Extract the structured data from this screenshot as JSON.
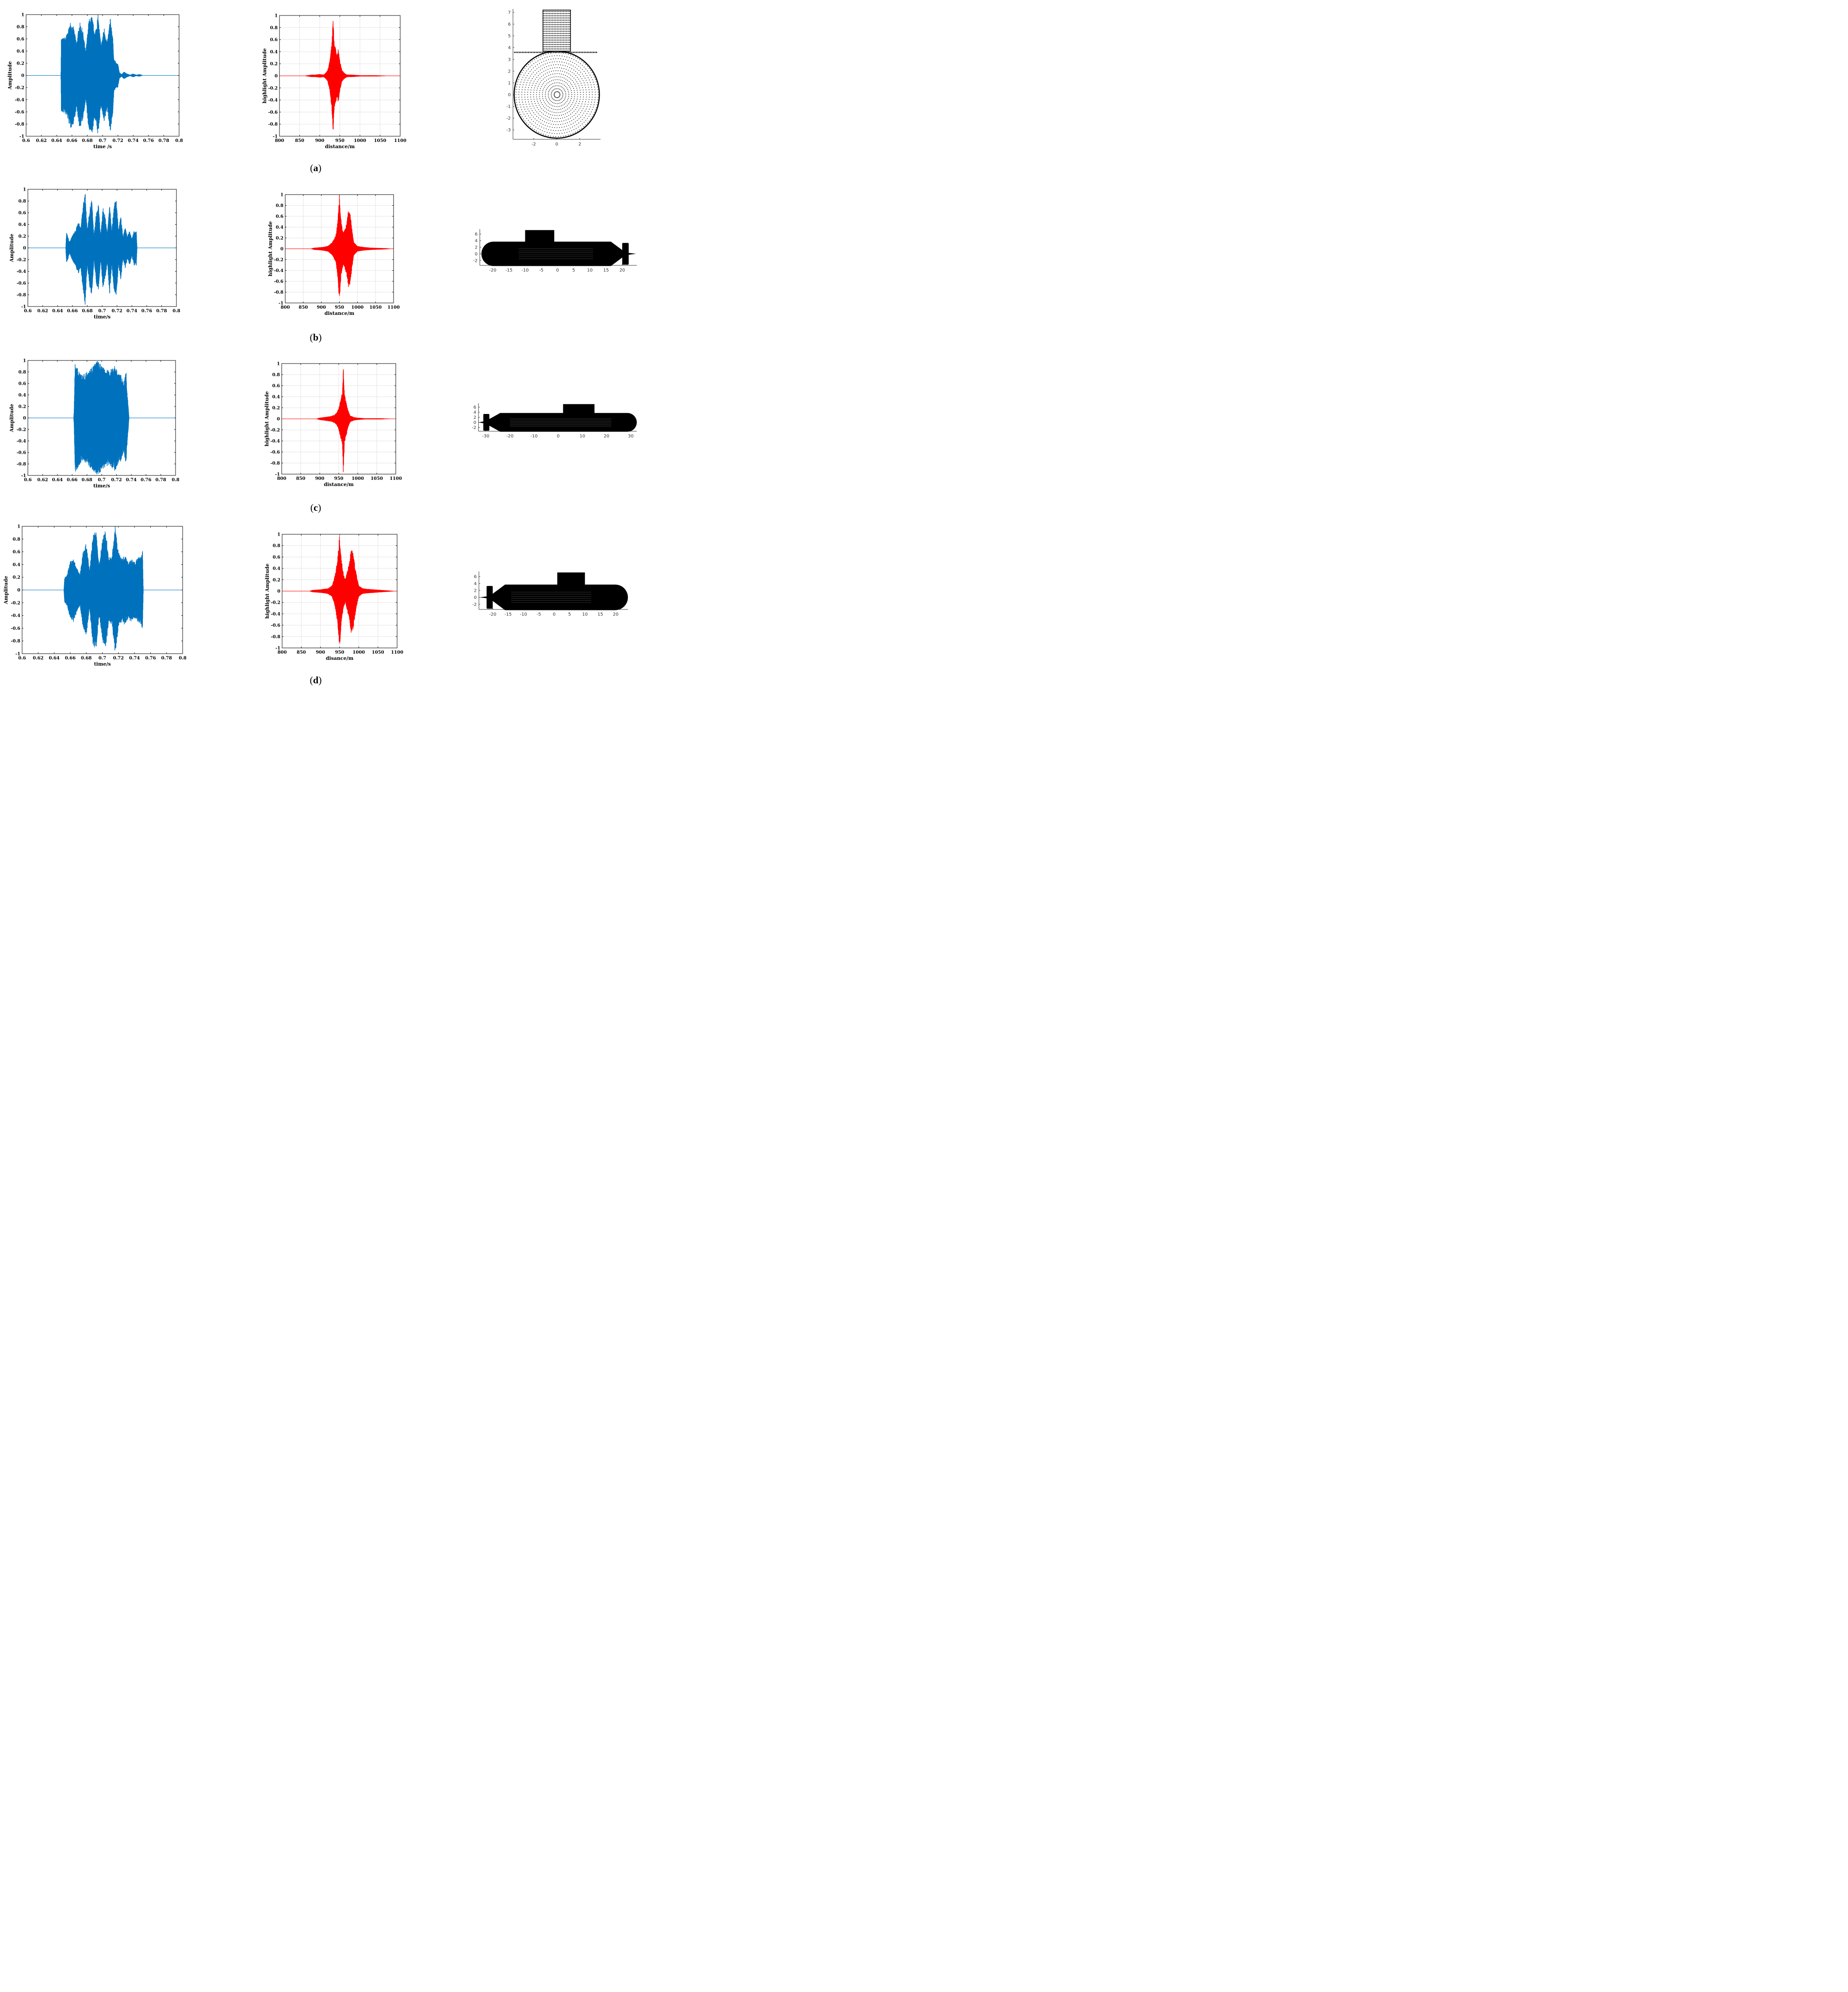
{
  "colors": {
    "waveform": "#0072BD",
    "highlight": "#FF0000",
    "model": "#000000"
  },
  "rows": [
    {
      "caption_letter": "a",
      "waveform": {
        "type": "area",
        "xlabel": "time /s",
        "ylabel": "Amplitude",
        "xlim": [
          0.6,
          0.8
        ],
        "ylim": [
          -1,
          1
        ],
        "xticks": [
          "0.6",
          "0.62",
          "0.64",
          "0.66",
          "0.68",
          "0.7",
          "0.72",
          "0.74",
          "0.76",
          "0.78",
          "0.8"
        ],
        "yticks": [
          "1",
          "0.8",
          "0.6",
          "0.4",
          "0.2",
          "0",
          "-0.2",
          "-0.4",
          "-0.6",
          "-0.8",
          "-1"
        ],
        "grid": false,
        "envelope": {
          "t": [
            0.6,
            0.6455,
            0.646,
            0.65,
            0.654,
            0.658,
            0.662,
            0.666,
            0.67,
            0.674,
            0.678,
            0.682,
            0.686,
            0.69,
            0.694,
            0.698,
            0.702,
            0.706,
            0.71,
            0.713,
            0.715,
            0.716,
            0.718,
            0.72,
            0.722,
            0.725,
            0.728,
            0.732,
            0.736,
            0.74,
            0.744,
            0.748,
            0.751,
            0.752,
            0.8
          ],
          "a": [
            0,
            0,
            0.62,
            0.62,
            0.7,
            0.88,
            0.8,
            0.55,
            0.88,
            0.75,
            0.4,
            0.92,
            0.98,
            0.7,
            1.0,
            0.5,
            0.8,
            0.55,
            0.95,
            0.7,
            0.25,
            0.25,
            0.2,
            0.2,
            0.05,
            0.02,
            0.06,
            0.03,
            0.01,
            0.03,
            0.01,
            0.02,
            0.01,
            0,
            0
          ]
        }
      },
      "highlight": {
        "type": "area",
        "xlabel": "distance/m",
        "ylabel": "highlight Amplitude",
        "xlim": [
          800,
          1100
        ],
        "ylim": [
          -1,
          1
        ],
        "xticks": [
          "800",
          "850",
          "900",
          "950",
          "1000",
          "1050",
          "1100"
        ],
        "yticks": [
          "1",
          "0.8",
          "0.6",
          "0.4",
          "0.2",
          "0",
          "-0.2",
          "-0.4",
          "-0.6",
          "-0.8",
          "-1"
        ],
        "grid": true,
        "envelope": {
          "x": [
            800,
            860,
            870,
            880,
            890,
            900,
            910,
            915,
            920,
            925,
            930,
            933,
            936,
            940,
            943,
            946,
            950,
            955,
            960,
            965,
            970,
            980,
            990,
            1000,
            1010,
            1020,
            1040,
            1060,
            1080,
            1100
          ],
          "a": [
            0,
            0,
            0.01,
            0.02,
            0.02,
            0.03,
            0.02,
            0.05,
            0.1,
            0.25,
            0.55,
            1.0,
            0.55,
            0.45,
            0.35,
            0.45,
            0.25,
            0.1,
            0.06,
            0.03,
            0.02,
            0.02,
            0.015,
            0.01,
            0.01,
            0.01,
            0.01,
            0.005,
            0,
            0
          ]
        }
      },
      "model": {
        "type": "scatter",
        "view": "front",
        "xlim": [
          -3.8,
          3.8
        ],
        "ylim": [
          -3.8,
          7.3
        ],
        "xticks": [
          "-2",
          "0",
          "2"
        ],
        "yticks": [
          "7",
          "6",
          "5",
          "4",
          "3",
          "2",
          "1",
          "0",
          "-1",
          "-2",
          "-3"
        ]
      }
    },
    {
      "caption_letter": "b",
      "waveform": {
        "type": "area",
        "xlabel": "time/s",
        "ylabel": "Amplitude",
        "xlim": [
          0.6,
          0.8
        ],
        "ylim": [
          -1,
          1
        ],
        "xticks": [
          "0.6",
          "0.62",
          "0.64",
          "0.66",
          "0.68",
          "0.7",
          "0.72",
          "0.74",
          "0.76",
          "0.78",
          "0.8"
        ],
        "yticks": [
          "1",
          "0.8",
          "0.6",
          "0.4",
          "0.2",
          "0",
          "-0.2",
          "-0.4",
          "-0.6",
          "-0.8",
          "-1"
        ],
        "grid": false,
        "envelope": {
          "t": [
            0.6,
            0.651,
            0.652,
            0.656,
            0.66,
            0.664,
            0.668,
            0.671,
            0.674,
            0.677,
            0.68,
            0.683,
            0.686,
            0.689,
            0.692,
            0.695,
            0.698,
            0.701,
            0.704,
            0.707,
            0.71,
            0.713,
            0.716,
            0.719,
            0.722,
            0.725,
            0.728,
            0.731,
            0.734,
            0.737,
            0.74,
            0.743,
            0.745,
            0.746,
            0.747,
            0.8
          ],
          "a": [
            0,
            0,
            0.28,
            0.1,
            0.22,
            0.3,
            0.45,
            0.35,
            0.7,
            1.0,
            0.3,
            0.65,
            0.85,
            0.2,
            0.6,
            0.75,
            0.2,
            0.7,
            0.55,
            0.25,
            0.8,
            0.3,
            0.75,
            0.85,
            0.3,
            0.55,
            0.2,
            0.35,
            0.2,
            0.3,
            0.15,
            0.3,
            0.28,
            0.3,
            0,
            0
          ]
        }
      },
      "highlight": {
        "type": "area",
        "xlabel": "distance/m",
        "ylabel": "highlight Amplitude",
        "xlim": [
          800,
          1100
        ],
        "ylim": [
          -1,
          1
        ],
        "xticks": [
          "800",
          "850",
          "900",
          "950",
          "1000",
          "1050",
          "1100"
        ],
        "yticks": [
          "1",
          "0.8",
          "0.6",
          "0.4",
          "0.2",
          "0",
          "-0.2",
          "-0.4",
          "-0.6",
          "-0.8",
          "-1"
        ],
        "grid": true,
        "envelope": {
          "x": [
            800,
            870,
            880,
            900,
            910,
            920,
            930,
            940,
            945,
            950,
            955,
            960,
            965,
            970,
            975,
            980,
            985,
            990,
            1000,
            1010,
            1020,
            1040,
            1060,
            1080,
            1100
          ],
          "a": [
            0,
            0,
            0.02,
            0.03,
            0.04,
            0.06,
            0.12,
            0.25,
            0.5,
            1.0,
            0.5,
            0.3,
            0.35,
            0.5,
            0.72,
            0.65,
            0.35,
            0.12,
            0.05,
            0.04,
            0.03,
            0.02,
            0.015,
            0.01,
            0
          ]
        }
      },
      "model": {
        "type": "scatter",
        "view": "side-right",
        "xlim": [
          -24,
          24.5
        ],
        "ylim": [
          -3.5,
          7.5
        ],
        "xticks": [
          "-20",
          "-15",
          "-10",
          "-5",
          "0",
          "5",
          "10",
          "15",
          "20"
        ],
        "yticks": [
          "6",
          "4",
          "2",
          "0",
          "-2"
        ]
      }
    },
    {
      "caption_letter": "c",
      "waveform": {
        "type": "area",
        "xlabel": "time/s",
        "ylabel": "Amplitude",
        "xlim": [
          0.6,
          0.8
        ],
        "ylim": [
          -1,
          1
        ],
        "xticks": [
          "0.6",
          "0.62",
          "0.64",
          "0.66",
          "0.68",
          "0.7",
          "0.72",
          "0.74",
          "0.76",
          "0.78",
          "0.8"
        ],
        "yticks": [
          "1",
          "0.8",
          "0.6",
          "0.4",
          "0.2",
          "0",
          "-0.2",
          "-0.4",
          "-0.6",
          "-0.8",
          "-1"
        ],
        "grid": false,
        "envelope": {
          "t": [
            0.6,
            0.662,
            0.6625,
            0.664,
            0.666,
            0.67,
            0.674,
            0.678,
            0.682,
            0.686,
            0.69,
            0.694,
            0.698,
            0.702,
            0.706,
            0.71,
            0.714,
            0.718,
            0.722,
            0.726,
            0.73,
            0.733,
            0.734,
            0.736,
            0.737,
            0.8
          ],
          "a": [
            0,
            0,
            0.1,
            0.95,
            0.9,
            0.82,
            0.75,
            0.78,
            0.85,
            0.88,
            0.95,
            1.0,
            0.95,
            0.88,
            0.85,
            0.82,
            0.88,
            0.92,
            0.8,
            0.75,
            0.6,
            0.82,
            0.55,
            0.2,
            0,
            0
          ]
        }
      },
      "highlight": {
        "type": "area",
        "xlabel": "distance/m",
        "ylabel": "highlight Amplitude",
        "xlim": [
          800,
          1100
        ],
        "ylim": [
          -1,
          1
        ],
        "xticks": [
          "800",
          "850",
          "900",
          "950",
          "1000",
          "1050",
          "1100"
        ],
        "yticks": [
          "1",
          "0.8",
          "0.6",
          "0.4",
          "0.2",
          "0",
          "-0.2",
          "-0.4",
          "-0.6",
          "-0.8",
          "-1"
        ],
        "grid": true,
        "envelope": {
          "x": [
            800,
            890,
            900,
            910,
            920,
            930,
            940,
            945,
            950,
            955,
            960,
            962,
            965,
            970,
            975,
            980,
            990,
            1000,
            1010,
            1020,
            1040,
            1060,
            1080,
            1100
          ],
          "a": [
            0,
            0,
            0.02,
            0.03,
            0.04,
            0.05,
            0.08,
            0.12,
            0.2,
            0.35,
            0.5,
            1.0,
            0.45,
            0.3,
            0.15,
            0.06,
            0.03,
            0.02,
            0.015,
            0.01,
            0.01,
            0.01,
            0.005,
            0
          ]
        }
      },
      "model": {
        "type": "scatter",
        "view": "side-left",
        "xlim": [
          -33,
          32.5
        ],
        "ylim": [
          -3.5,
          7.5
        ],
        "xticks": [
          "-30",
          "-20",
          "-10",
          "0",
          "10",
          "20",
          "30"
        ],
        "yticks": [
          "6",
          "4",
          "2",
          "0",
          "-2"
        ]
      }
    },
    {
      "caption_letter": "d",
      "waveform": {
        "type": "area",
        "xlabel": "time/s",
        "ylabel": "Amplitude",
        "xlim": [
          0.6,
          0.8
        ],
        "ylim": [
          -1,
          1
        ],
        "xticks": [
          "0.6",
          "0.62",
          "0.64",
          "0.66",
          "0.68",
          "0.7",
          "0.72",
          "0.74",
          "0.76",
          "0.78",
          "0.8"
        ],
        "yticks": [
          "1",
          "0.8",
          "0.6",
          "0.4",
          "0.2",
          "0",
          "-0.2",
          "-0.4",
          "-0.6",
          "-0.8",
          "-1"
        ],
        "grid": false,
        "envelope": {
          "t": [
            0.6,
            0.652,
            0.653,
            0.656,
            0.66,
            0.664,
            0.668,
            0.672,
            0.676,
            0.68,
            0.684,
            0.688,
            0.692,
            0.696,
            0.7,
            0.704,
            0.708,
            0.712,
            0.716,
            0.72,
            0.724,
            0.728,
            0.732,
            0.736,
            0.74,
            0.744,
            0.748,
            0.75,
            0.751,
            0.8
          ],
          "a": [
            0,
            0,
            0.2,
            0.25,
            0.45,
            0.5,
            0.35,
            0.25,
            0.6,
            0.75,
            0.3,
            0.85,
            0.95,
            0.4,
            0.8,
            0.95,
            0.5,
            0.55,
            1.0,
            0.6,
            0.5,
            0.55,
            0.45,
            0.5,
            0.45,
            0.5,
            0.55,
            0.62,
            0,
            0
          ]
        }
      },
      "highlight": {
        "type": "area",
        "xlabel": "disance/m",
        "ylabel": "highlight Amplitude",
        "xlim": [
          800,
          1100
        ],
        "ylim": [
          -1,
          1
        ],
        "xticks": [
          "800",
          "850",
          "900",
          "950",
          "1000",
          "1050",
          "1100"
        ],
        "yticks": [
          "1",
          "0.8",
          "0.6",
          "0.4",
          "0.2",
          "0",
          "-0.2",
          "-0.4",
          "-0.6",
          "-0.8",
          "-1"
        ],
        "grid": true,
        "envelope": {
          "x": [
            800,
            870,
            880,
            900,
            910,
            920,
            930,
            935,
            940,
            945,
            950,
            955,
            960,
            965,
            970,
            975,
            980,
            985,
            990,
            995,
            1000,
            1010,
            1020,
            1040,
            1060,
            1080,
            1100
          ],
          "a": [
            0,
            0,
            0.02,
            0.03,
            0.04,
            0.05,
            0.1,
            0.2,
            0.35,
            0.6,
            1.0,
            0.55,
            0.3,
            0.2,
            0.35,
            0.5,
            0.75,
            0.7,
            0.45,
            0.25,
            0.1,
            0.05,
            0.04,
            0.03,
            0.02,
            0.01,
            0
          ]
        }
      },
      "model": {
        "type": "scatter",
        "view": "side-left",
        "xlim": [
          -24.5,
          24
        ],
        "ylim": [
          -3.5,
          7.5
        ],
        "xticks": [
          "-20",
          "-15",
          "-10",
          "-5",
          "0",
          "5",
          "10",
          "15",
          "20"
        ],
        "yticks": [
          "6",
          "4",
          "2",
          "0",
          "-2"
        ]
      }
    }
  ]
}
